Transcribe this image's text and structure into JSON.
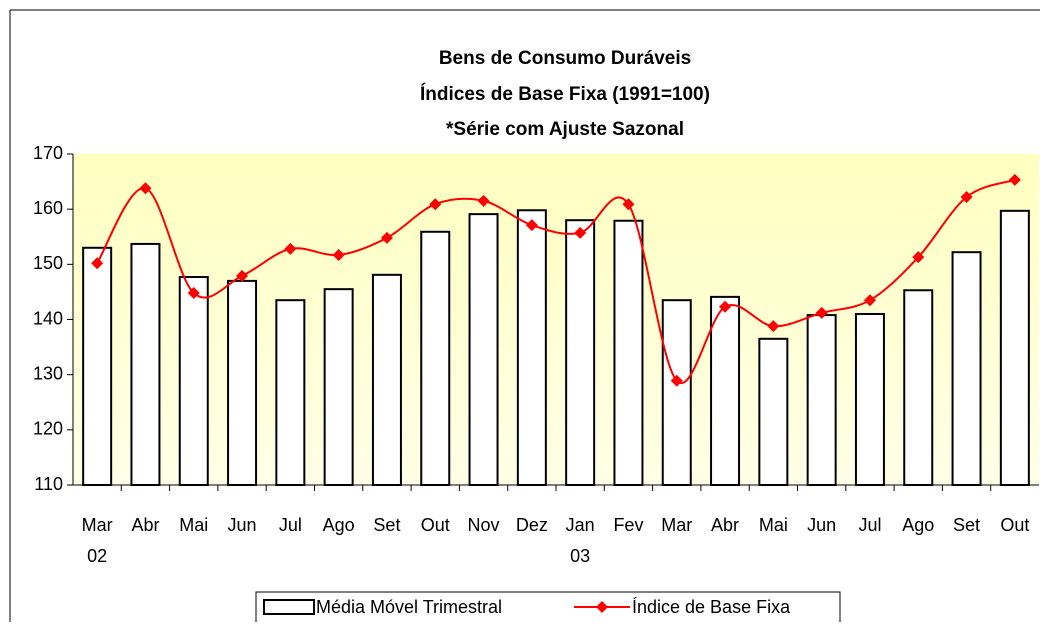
{
  "chart_data": {
    "type": "bar-line",
    "title": [
      "Bens de Consumo Duráveis",
      "Índices de Base Fixa (1991=100)",
      "*Série com Ajuste Sazonal"
    ],
    "categories": [
      "Mar",
      "Abr",
      "Mai",
      "Jun",
      "Jul",
      "Ago",
      "Set",
      "Out",
      "Nov",
      "Dez",
      "Jan",
      "Fev",
      "Mar",
      "Abr",
      "Mai",
      "Jun",
      "Jul",
      "Ago",
      "Set",
      "Out"
    ],
    "category_years": [
      "02",
      null,
      null,
      null,
      null,
      null,
      null,
      null,
      null,
      null,
      "03",
      null,
      null,
      null,
      null,
      null,
      null,
      null,
      null,
      null
    ],
    "series": [
      {
        "name": "Média Móvel Trimestral",
        "type": "bar",
        "color": "#ffffff",
        "values": [
          153.0,
          153.7,
          147.7,
          147.0,
          143.5,
          145.5,
          148.1,
          155.9,
          159.1,
          159.8,
          158.0,
          157.9,
          143.5,
          144.1,
          136.5,
          140.8,
          141.0,
          145.3,
          152.2,
          159.7
        ]
      },
      {
        "name": "Índice de Base Fixa",
        "type": "line",
        "color": "#ff0000",
        "values": [
          150.2,
          163.8,
          144.8,
          147.9,
          152.8,
          151.7,
          154.8,
          160.9,
          161.5,
          157.1,
          155.7,
          160.9,
          128.9,
          142.3,
          138.8,
          141.2,
          143.5,
          151.3,
          162.2,
          165.3
        ]
      }
    ],
    "ylim": [
      110,
      170
    ],
    "yticks": [
      110,
      120,
      130,
      140,
      150,
      160,
      170
    ],
    "grid": false
  }
}
